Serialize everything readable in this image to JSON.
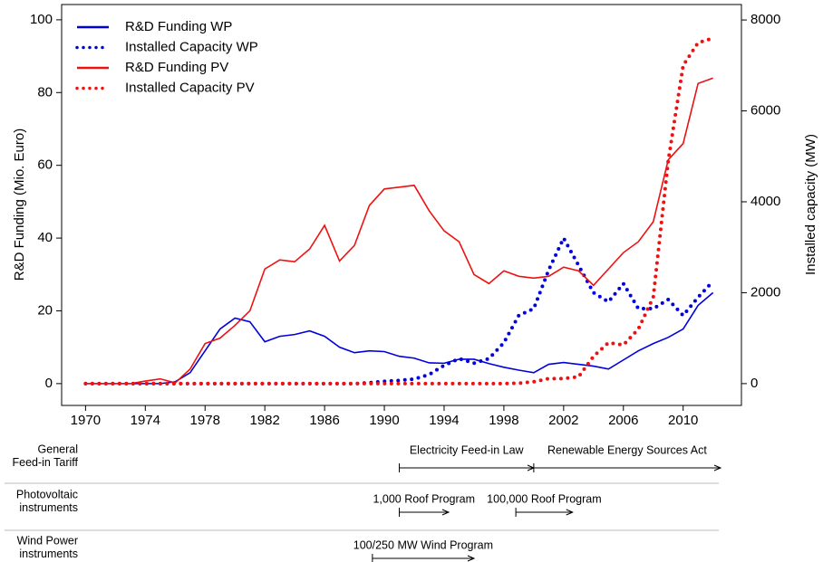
{
  "chart_data": {
    "type": "line",
    "x": [
      1970,
      1971,
      1972,
      1973,
      1974,
      1975,
      1976,
      1977,
      1978,
      1979,
      1980,
      1981,
      1982,
      1983,
      1984,
      1985,
      1986,
      1987,
      1988,
      1989,
      1990,
      1991,
      1992,
      1993,
      1994,
      1995,
      1996,
      1997,
      1998,
      1999,
      2000,
      2001,
      2002,
      2003,
      2004,
      2005,
      2006,
      2007,
      2008,
      2009,
      2010,
      2011,
      2012
    ],
    "xlim": [
      1968.4,
      2013.9
    ],
    "xticks": [
      1970,
      1974,
      1978,
      1982,
      1986,
      1990,
      1994,
      1998,
      2002,
      2006,
      2010
    ],
    "ylim": [
      -6,
      104.2
    ],
    "yticks": [
      0,
      20,
      40,
      60,
      80,
      100
    ],
    "y2lim": [
      -480,
      8340
    ],
    "y2ticks": [
      0,
      2000,
      4000,
      6000,
      8000
    ],
    "ylabel": "R&D Funding (Mio. Euro)",
    "y2label": "Installed capacity (MW)",
    "legend": "top-left",
    "series": [
      {
        "name": "R&D Funding WP",
        "color": "#0000dd",
        "style": "solid",
        "values": [
          0,
          0,
          0,
          0,
          0,
          0,
          0.5,
          3,
          9,
          15,
          18,
          17,
          11.5,
          13,
          13.5,
          14.5,
          13,
          10,
          8.5,
          9,
          8.8,
          7.5,
          7,
          5.7,
          5.6,
          6.7,
          6.7,
          5.5,
          4.5,
          3.7,
          3,
          5.3,
          5.8,
          5.3,
          4.8,
          4,
          6.5,
          9,
          11,
          12.7,
          15,
          21.5,
          25
        ]
      },
      {
        "name": "Installed Capacity WP",
        "color": "#0000dd",
        "style": "dotted",
        "axis": "y2",
        "values": [
          0,
          0,
          0,
          0,
          0,
          0,
          0,
          0,
          0,
          0,
          0,
          0,
          0,
          0,
          0,
          0,
          0,
          0,
          0,
          20,
          50,
          70,
          100,
          200,
          400,
          550,
          450,
          550,
          900,
          1500,
          1650,
          2500,
          3200,
          2600,
          2000,
          1800,
          2200,
          1650,
          1650,
          1850,
          1500,
          1900,
          2250
        ]
      },
      {
        "name": "R&D Funding PV",
        "color": "#ee1111",
        "style": "solid",
        "values": [
          0,
          0,
          0,
          0,
          0.7,
          1.3,
          0.2,
          4,
          11,
          12.5,
          16,
          20,
          31.5,
          34,
          33.5,
          37,
          43.5,
          33.7,
          38,
          49,
          53.5,
          54,
          54.5,
          47.5,
          42,
          39,
          30,
          27.5,
          31,
          29.5,
          29,
          29.5,
          32,
          31,
          27,
          31.5,
          36,
          39,
          44.5,
          61.5,
          66,
          82.5,
          84
        ]
      },
      {
        "name": "Installed Capacity PV",
        "color": "#ee1111",
        "style": "dotted",
        "axis": "y2",
        "values": [
          0,
          0,
          0,
          0,
          0,
          0,
          0,
          0,
          0,
          0,
          0,
          0,
          0,
          0,
          0,
          0,
          0,
          0,
          0,
          0,
          0,
          0,
          0,
          0,
          0,
          0,
          0,
          0,
          0,
          10,
          40,
          110,
          110,
          150,
          600,
          900,
          850,
          1200,
          1900,
          4900,
          7000,
          7500,
          7600
        ]
      }
    ]
  },
  "timeline": [
    {
      "label": [
        "General",
        "Feed-in Tariff"
      ],
      "programs": [
        {
          "name": "Electricity Feed-in Law",
          "start": 1991,
          "end": 2000
        },
        {
          "name": "Renewable Energy Sources Act",
          "start": 2000,
          "end": 2012.5
        }
      ]
    },
    {
      "label": [
        "Photovoltaic",
        "instruments"
      ],
      "programs": [
        {
          "name": "1,000 Roof Program",
          "start": 1991,
          "end": 1994.3
        },
        {
          "name": "100,000 Roof Program",
          "start": 1998.8,
          "end": 2002.6
        }
      ]
    },
    {
      "label": [
        "Wind Power",
        "instruments"
      ],
      "programs": [
        {
          "name": "100/250 MW Wind Program",
          "start": 1989.2,
          "end": 1996
        }
      ]
    }
  ]
}
